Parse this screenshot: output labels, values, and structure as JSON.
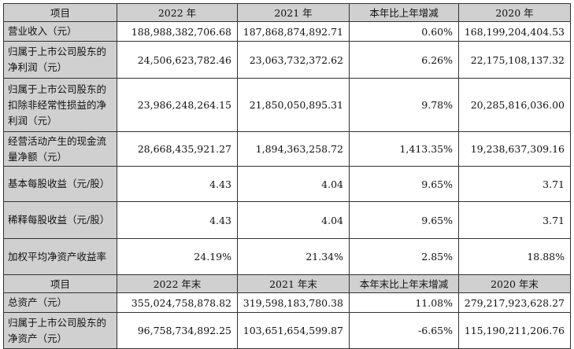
{
  "header1": {
    "col0": "项目",
    "col1": "2022 年",
    "col2": "2021 年",
    "col3": "本年比上年增减",
    "col4": "2020 年"
  },
  "rows1": [
    {
      "label": "营业收入（元）",
      "v2022": "188,988,382,706.68",
      "v2021": "187,868,874,892.71",
      "change": "0.60%",
      "v2020": "168,199,204,404.53"
    },
    {
      "label": "归属于上市公司股东的净利润（元）",
      "v2022": "24,506,623,782.46",
      "v2021": "23,063,732,372.62",
      "change": "6.26%",
      "v2020": "22,175,108,137.32"
    },
    {
      "label": "归属于上市公司股东的扣除非经常性损益的净利润（元）",
      "v2022": "23,986,248,264.15",
      "v2021": "21,850,050,895.31",
      "change": "9.78%",
      "v2020": "20,285,816,036.00"
    },
    {
      "label": "经营活动产生的现金流量净额（元）",
      "v2022": "28,668,435,921.27",
      "v2021": "1,894,363,258.72",
      "change": "1,413.35%",
      "v2020": "19,238,637,309.16"
    },
    {
      "label": "基本每股收益（元/股）",
      "v2022": "4.43",
      "v2021": "4.04",
      "change": "9.65%",
      "v2020": "3.71"
    },
    {
      "label": "稀释每股收益（元/股）",
      "v2022": "4.43",
      "v2021": "4.04",
      "change": "9.65%",
      "v2020": "3.71"
    },
    {
      "label": "加权平均净资产收益率",
      "v2022": "24.19%",
      "v2021": "21.34%",
      "change": "2.85%",
      "v2020": "18.88%"
    }
  ],
  "header2": {
    "col0": "项目",
    "col1": "2022 年末",
    "col2": "2021 年末",
    "col3": "本年末比上年末增减",
    "col4": "2020 年末"
  },
  "rows2": [
    {
      "label": "总资产（元）",
      "v2022": "355,024,758,878.82",
      "v2021": "319,598,183,780.38",
      "change": "11.08%",
      "v2020": "279,217,923,628.27"
    },
    {
      "label": "归属于上市公司股东的净资产（元）",
      "v2022": "96,758,734,892.25",
      "v2021": "103,651,654,599.87",
      "change": "-6.65%",
      "v2020": "115,190,211,206.76"
    }
  ]
}
